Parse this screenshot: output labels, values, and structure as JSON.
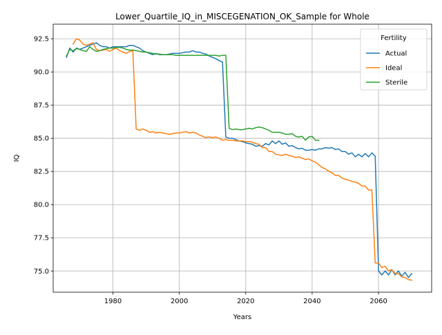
{
  "chart_data": {
    "type": "line",
    "title": "Lower_Quartile_IQ_in_MISCEGENATION_OK_Sample for Whole",
    "xlabel": "Years",
    "ylabel": "IQ",
    "xlim": [
      1962,
      2076
    ],
    "ylim": [
      73.4,
      93.6
    ],
    "x_ticks": [
      1980,
      2000,
      2020,
      2040,
      2060
    ],
    "y_ticks": [
      75.0,
      77.5,
      80.0,
      82.5,
      85.0,
      87.5,
      90.0,
      92.5
    ],
    "y_tick_labels": [
      "75.0",
      "77.5",
      "80.0",
      "82.5",
      "85.0",
      "87.5",
      "90.0",
      "92.5"
    ],
    "grid": true,
    "legend": {
      "title": "Fertility",
      "position": "top-right"
    },
    "series": [
      {
        "name": "Actual",
        "color": "#1f77b4",
        "points": [
          [
            1966,
            91.1
          ],
          [
            1967,
            91.8
          ],
          [
            1968,
            91.5
          ],
          [
            1969,
            91.8
          ],
          [
            1970,
            91.7
          ],
          [
            1971,
            91.8
          ],
          [
            1972,
            91.9
          ],
          [
            1973,
            92.0
          ],
          [
            1974,
            92.1
          ],
          [
            1975,
            92.2
          ],
          [
            1976,
            92.0
          ],
          [
            1977,
            91.9
          ],
          [
            1978,
            91.9
          ],
          [
            1979,
            91.8
          ],
          [
            1980,
            91.9
          ],
          [
            1981,
            91.9
          ],
          [
            1982,
            91.9
          ],
          [
            1983,
            91.9
          ],
          [
            1984,
            91.9
          ],
          [
            1985,
            92.0
          ],
          [
            1986,
            92.0
          ],
          [
            1987,
            91.9
          ],
          [
            1988,
            91.8
          ],
          [
            1989,
            91.6
          ],
          [
            1990,
            91.5
          ],
          [
            1991,
            91.4
          ],
          [
            1992,
            91.3
          ],
          [
            1993,
            91.4
          ],
          [
            1994,
            91.3
          ],
          [
            1995,
            91.3
          ],
          [
            1996,
            91.3
          ],
          [
            1997,
            91.35
          ],
          [
            1998,
            91.4
          ],
          [
            1999,
            91.4
          ],
          [
            2000,
            91.4
          ],
          [
            2001,
            91.45
          ],
          [
            2002,
            91.5
          ],
          [
            2003,
            91.5
          ],
          [
            2004,
            91.6
          ],
          [
            2005,
            91.5
          ],
          [
            2006,
            91.5
          ],
          [
            2007,
            91.4
          ],
          [
            2008,
            91.35
          ],
          [
            2009,
            91.2
          ],
          [
            2010,
            91.1
          ],
          [
            2011,
            91.0
          ],
          [
            2012,
            90.85
          ],
          [
            2013,
            90.75
          ],
          [
            2014,
            85.1
          ],
          [
            2015,
            85.0
          ],
          [
            2016,
            85.0
          ],
          [
            2017,
            84.9
          ],
          [
            2018,
            84.8
          ],
          [
            2019,
            84.75
          ],
          [
            2020,
            84.65
          ],
          [
            2021,
            84.6
          ],
          [
            2022,
            84.55
          ],
          [
            2023,
            84.4
          ],
          [
            2024,
            84.45
          ],
          [
            2025,
            84.4
          ],
          [
            2026,
            84.6
          ],
          [
            2027,
            84.5
          ],
          [
            2028,
            84.8
          ],
          [
            2029,
            84.6
          ],
          [
            2030,
            84.8
          ],
          [
            2031,
            84.55
          ],
          [
            2032,
            84.65
          ],
          [
            2033,
            84.4
          ],
          [
            2034,
            84.45
          ],
          [
            2035,
            84.3
          ],
          [
            2036,
            84.2
          ],
          [
            2037,
            84.25
          ],
          [
            2038,
            84.1
          ],
          [
            2039,
            84.1
          ],
          [
            2040,
            84.15
          ],
          [
            2041,
            84.1
          ],
          [
            2042,
            84.2
          ],
          [
            2043,
            84.2
          ],
          [
            2044,
            84.3
          ],
          [
            2045,
            84.25
          ],
          [
            2046,
            84.3
          ],
          [
            2047,
            84.15
          ],
          [
            2048,
            84.2
          ],
          [
            2049,
            84.0
          ],
          [
            2050,
            84.0
          ],
          [
            2051,
            83.8
          ],
          [
            2052,
            83.9
          ],
          [
            2053,
            83.6
          ],
          [
            2054,
            83.8
          ],
          [
            2055,
            83.6
          ],
          [
            2056,
            83.85
          ],
          [
            2057,
            83.6
          ],
          [
            2058,
            83.9
          ],
          [
            2059,
            83.65
          ],
          [
            2060,
            75.0
          ],
          [
            2061,
            74.7
          ],
          [
            2062,
            75.0
          ],
          [
            2063,
            74.7
          ],
          [
            2064,
            75.1
          ],
          [
            2065,
            74.7
          ],
          [
            2066,
            75.0
          ],
          [
            2067,
            74.6
          ],
          [
            2068,
            74.9
          ],
          [
            2069,
            74.5
          ],
          [
            2070,
            74.8
          ]
        ]
      },
      {
        "name": "Ideal",
        "color": "#ff7f0e",
        "points": [
          [
            1968,
            92.1
          ],
          [
            1969,
            92.5
          ],
          [
            1970,
            92.4
          ],
          [
            1971,
            92.1
          ],
          [
            1972,
            92.0
          ],
          [
            1973,
            92.1
          ],
          [
            1974,
            92.2
          ],
          [
            1975,
            91.7
          ],
          [
            1976,
            91.6
          ],
          [
            1977,
            91.65
          ],
          [
            1978,
            91.7
          ],
          [
            1979,
            91.55
          ],
          [
            1980,
            91.7
          ],
          [
            1981,
            91.8
          ],
          [
            1982,
            91.6
          ],
          [
            1983,
            91.5
          ],
          [
            1984,
            91.4
          ],
          [
            1985,
            91.55
          ],
          [
            1986,
            91.6
          ],
          [
            1987,
            85.7
          ],
          [
            1988,
            85.6
          ],
          [
            1989,
            85.7
          ],
          [
            1990,
            85.6
          ],
          [
            1991,
            85.45
          ],
          [
            1992,
            85.5
          ],
          [
            1993,
            85.4
          ],
          [
            1994,
            85.45
          ],
          [
            1995,
            85.4
          ],
          [
            1996,
            85.35
          ],
          [
            1997,
            85.3
          ],
          [
            1998,
            85.35
          ],
          [
            1999,
            85.4
          ],
          [
            2000,
            85.4
          ],
          [
            2001,
            85.45
          ],
          [
            2002,
            85.5
          ],
          [
            2003,
            85.4
          ],
          [
            2004,
            85.45
          ],
          [
            2005,
            85.4
          ],
          [
            2006,
            85.25
          ],
          [
            2007,
            85.15
          ],
          [
            2008,
            85.05
          ],
          [
            2009,
            85.1
          ],
          [
            2010,
            85.05
          ],
          [
            2011,
            85.1
          ],
          [
            2012,
            85.0
          ],
          [
            2013,
            84.85
          ],
          [
            2014,
            84.9
          ],
          [
            2015,
            84.85
          ],
          [
            2016,
            84.85
          ],
          [
            2017,
            84.8
          ],
          [
            2018,
            84.8
          ],
          [
            2019,
            84.8
          ],
          [
            2020,
            84.75
          ],
          [
            2021,
            84.75
          ],
          [
            2022,
            84.7
          ],
          [
            2023,
            84.6
          ],
          [
            2024,
            84.55
          ],
          [
            2025,
            84.3
          ],
          [
            2026,
            84.3
          ],
          [
            2027,
            84.0
          ],
          [
            2028,
            84.0
          ],
          [
            2029,
            83.8
          ],
          [
            2030,
            83.75
          ],
          [
            2031,
            83.7
          ],
          [
            2032,
            83.8
          ],
          [
            2033,
            83.7
          ],
          [
            2034,
            83.65
          ],
          [
            2035,
            83.55
          ],
          [
            2036,
            83.6
          ],
          [
            2037,
            83.5
          ],
          [
            2038,
            83.4
          ],
          [
            2039,
            83.45
          ],
          [
            2040,
            83.3
          ],
          [
            2041,
            83.2
          ],
          [
            2042,
            83.0
          ],
          [
            2043,
            82.8
          ],
          [
            2044,
            82.7
          ],
          [
            2045,
            82.5
          ],
          [
            2046,
            82.4
          ],
          [
            2047,
            82.2
          ],
          [
            2048,
            82.2
          ],
          [
            2049,
            82.0
          ],
          [
            2050,
            81.9
          ],
          [
            2051,
            81.85
          ],
          [
            2052,
            81.75
          ],
          [
            2053,
            81.7
          ],
          [
            2054,
            81.6
          ],
          [
            2055,
            81.4
          ],
          [
            2056,
            81.4
          ],
          [
            2057,
            81.1
          ],
          [
            2058,
            81.1
          ],
          [
            2059,
            75.6
          ],
          [
            2060,
            75.6
          ],
          [
            2061,
            75.25
          ],
          [
            2062,
            75.35
          ],
          [
            2063,
            75.0
          ],
          [
            2064,
            75.1
          ],
          [
            2065,
            74.8
          ],
          [
            2066,
            74.8
          ],
          [
            2067,
            74.55
          ],
          [
            2068,
            74.5
          ],
          [
            2069,
            74.35
          ],
          [
            2070,
            74.3
          ]
        ]
      },
      {
        "name": "Sterile",
        "color": "#2ca02c",
        "points": [
          [
            1966,
            91.2
          ],
          [
            1967,
            91.7
          ],
          [
            1968,
            91.6
          ],
          [
            1969,
            91.75
          ],
          [
            1970,
            91.7
          ],
          [
            1971,
            91.6
          ],
          [
            1972,
            91.55
          ],
          [
            1973,
            91.9
          ],
          [
            1974,
            91.7
          ],
          [
            1975,
            91.55
          ],
          [
            1976,
            91.6
          ],
          [
            1977,
            91.7
          ],
          [
            1978,
            91.75
          ],
          [
            1979,
            91.8
          ],
          [
            1980,
            91.8
          ],
          [
            1981,
            91.85
          ],
          [
            1982,
            91.85
          ],
          [
            1983,
            91.8
          ],
          [
            1984,
            91.7
          ],
          [
            1985,
            91.65
          ],
          [
            1986,
            91.65
          ],
          [
            1987,
            91.6
          ],
          [
            1988,
            91.55
          ],
          [
            1989,
            91.5
          ],
          [
            1990,
            91.5
          ],
          [
            1991,
            91.45
          ],
          [
            1992,
            91.4
          ],
          [
            1993,
            91.35
          ],
          [
            1994,
            91.35
          ],
          [
            1995,
            91.3
          ],
          [
            1996,
            91.3
          ],
          [
            1997,
            91.3
          ],
          [
            1998,
            91.3
          ],
          [
            1999,
            91.25
          ],
          [
            2000,
            91.25
          ],
          [
            2001,
            91.25
          ],
          [
            2002,
            91.25
          ],
          [
            2003,
            91.25
          ],
          [
            2004,
            91.25
          ],
          [
            2005,
            91.25
          ],
          [
            2006,
            91.25
          ],
          [
            2007,
            91.25
          ],
          [
            2008,
            91.25
          ],
          [
            2009,
            91.25
          ],
          [
            2010,
            91.25
          ],
          [
            2011,
            91.25
          ],
          [
            2012,
            91.2
          ],
          [
            2013,
            91.25
          ],
          [
            2014,
            91.25
          ],
          [
            2015,
            85.75
          ],
          [
            2016,
            85.65
          ],
          [
            2017,
            85.7
          ],
          [
            2018,
            85.65
          ],
          [
            2019,
            85.65
          ],
          [
            2020,
            85.7
          ],
          [
            2021,
            85.75
          ],
          [
            2022,
            85.7
          ],
          [
            2023,
            85.8
          ],
          [
            2024,
            85.85
          ],
          [
            2025,
            85.8
          ],
          [
            2026,
            85.7
          ],
          [
            2027,
            85.6
          ],
          [
            2028,
            85.45
          ],
          [
            2029,
            85.45
          ],
          [
            2030,
            85.45
          ],
          [
            2031,
            85.4
          ],
          [
            2032,
            85.3
          ],
          [
            2033,
            85.3
          ],
          [
            2034,
            85.35
          ],
          [
            2035,
            85.15
          ],
          [
            2036,
            85.1
          ],
          [
            2037,
            85.15
          ],
          [
            2038,
            84.85
          ],
          [
            2039,
            85.1
          ],
          [
            2040,
            85.15
          ],
          [
            2041,
            84.85
          ],
          [
            2042,
            84.85
          ]
        ]
      }
    ]
  }
}
